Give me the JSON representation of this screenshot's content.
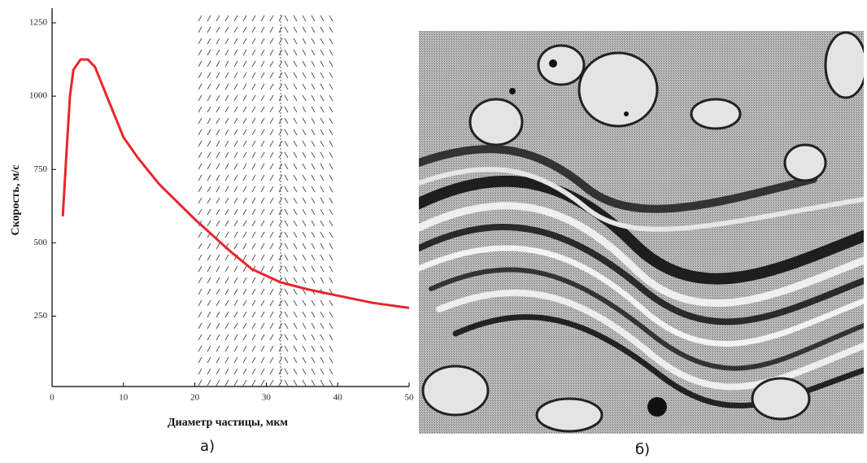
{
  "chart_data": {
    "type": "line",
    "x_label": "Диаметр частицы, мкм",
    "y_label": "Скорость, м/с",
    "x": [
      1.5,
      2,
      2.5,
      3,
      4,
      5,
      6,
      8,
      10,
      12,
      15,
      20,
      25,
      28,
      32,
      36,
      40,
      45,
      50
    ],
    "values": [
      590,
      800,
      1000,
      1090,
      1125,
      1125,
      1100,
      980,
      860,
      790,
      700,
      580,
      470,
      410,
      365,
      340,
      320,
      295,
      278
    ],
    "color": "#e8262a",
    "xlim": [
      0,
      50
    ],
    "xticks": [
      0,
      10,
      20,
      30,
      40,
      50
    ],
    "ylim": [
      10,
      1300
    ],
    "yticks": [
      250,
      500,
      750,
      1000,
      1250
    ]
  },
  "captions": [
    "а)",
    "б)"
  ]
}
